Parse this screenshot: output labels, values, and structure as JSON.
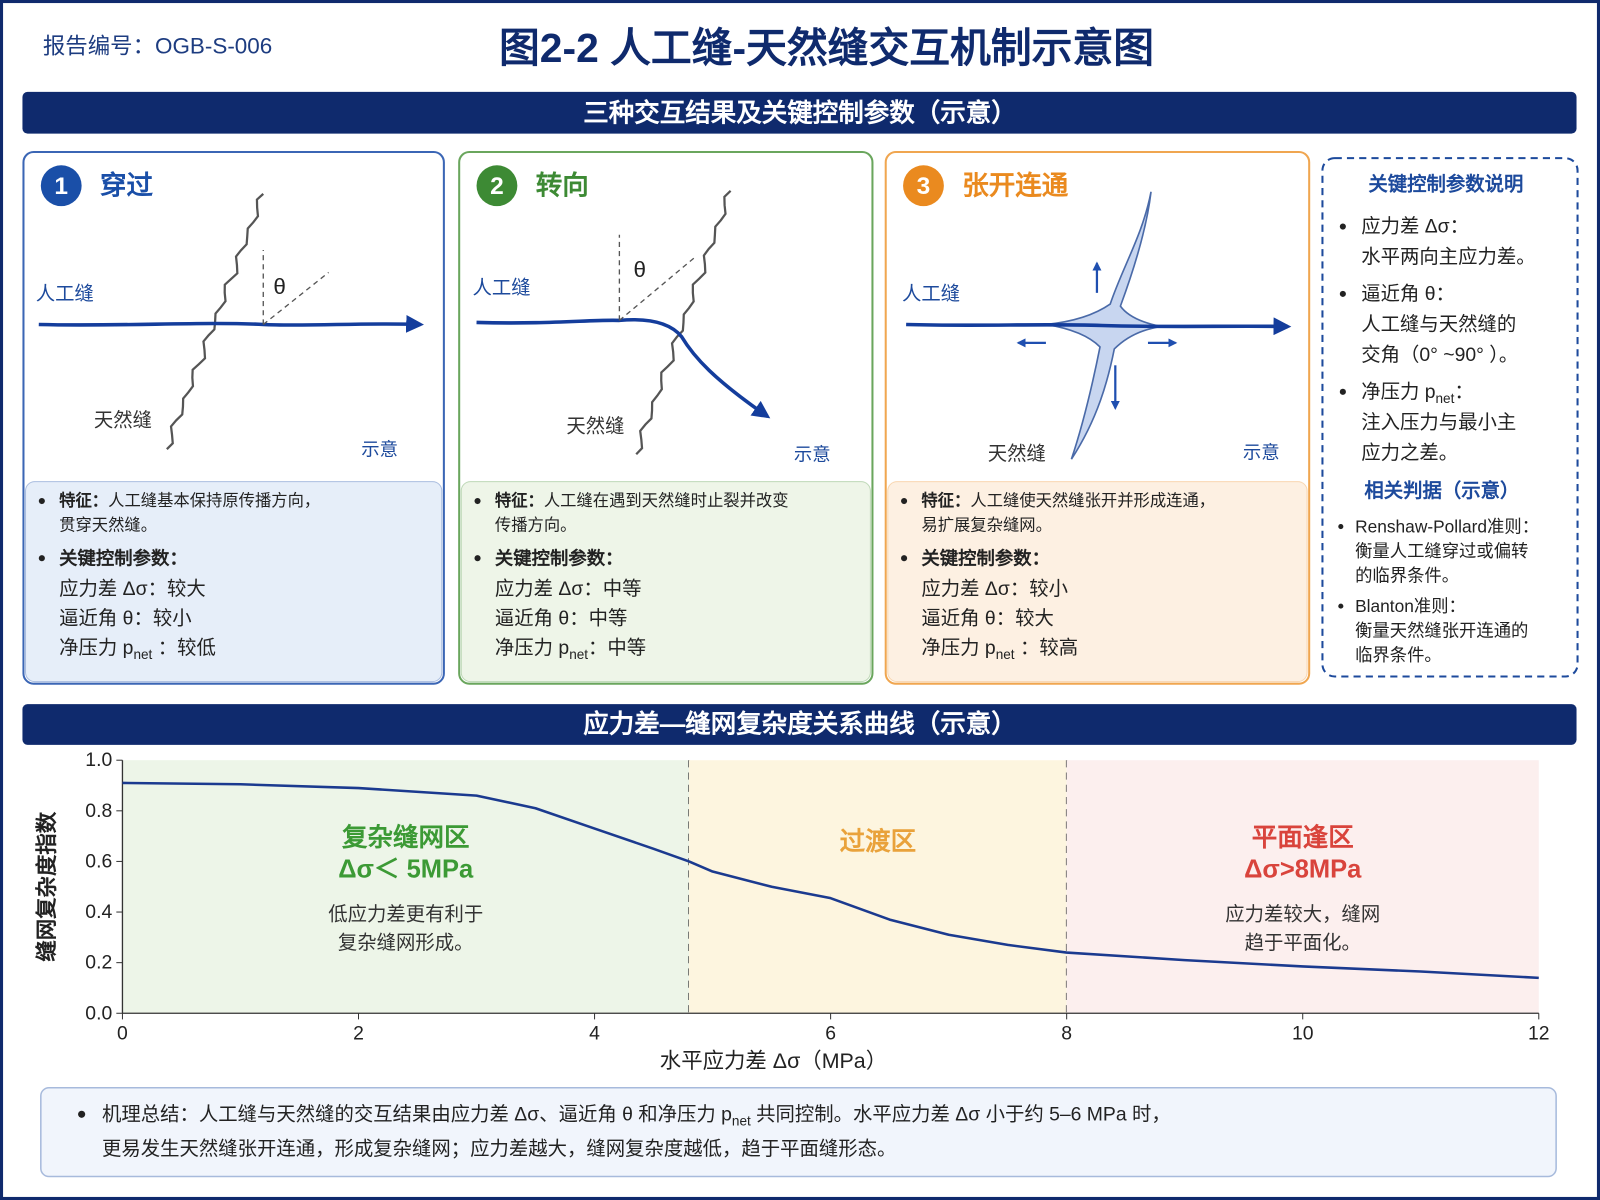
{
  "header": {
    "report_no": "报告编号：OGB-S-006",
    "title": "图2-2  人工缝-天然缝交互机制示意图"
  },
  "section_title": "三种交互结果及关键控制参数（示意）",
  "cards": [
    {
      "number": "1",
      "title": "穿过",
      "artificial_label": "人工缝",
      "natural_label": "天然缝",
      "angle_label": "θ",
      "note": "示意",
      "feature_label": "特征：",
      "feature_lines": [
        "人工缝基本保持原传播方向，",
        "贯穿天然缝。"
      ],
      "params_label": "关键控制参数：",
      "params": [
        {
          "name": "应力差 Δσ",
          "value": "：较大"
        },
        {
          "name": "逼近角 θ",
          "value": "：较小"
        },
        {
          "name": "净压力 p",
          "sub": "net",
          "value": " ：较低"
        }
      ]
    },
    {
      "number": "2",
      "title": "转向",
      "artificial_label": "人工缝",
      "natural_label": "天然缝",
      "angle_label": "θ",
      "note": "示意",
      "feature_label": "特征：",
      "feature_lines": [
        "人工缝在遇到天然缝时止裂并改变",
        "传播方向。"
      ],
      "params_label": "关键控制参数：",
      "params": [
        {
          "name": "应力差 Δσ",
          "value": "：中等"
        },
        {
          "name": "逼近角 θ",
          "value": "：中等"
        },
        {
          "name": "净压力 p",
          "sub": "net",
          "value": "：中等"
        }
      ]
    },
    {
      "number": "3",
      "title": "张开连通",
      "artificial_label": "人工缝",
      "natural_label": "天然缝",
      "note": "示意",
      "feature_label": "特征：",
      "feature_lines": [
        "人工缝使天然缝张开并形成连通，",
        "易扩展复杂缝网。"
      ],
      "params_label": "关键控制参数：",
      "params": [
        {
          "name": "应力差 Δσ",
          "value": "：较小"
        },
        {
          "name": "逼近角 θ",
          "value": "：较大"
        },
        {
          "name": "净压力 p",
          "sub": "net",
          "value": " ：较高"
        }
      ]
    }
  ],
  "side_panel": {
    "title": "关键控制参数说明",
    "items": [
      {
        "name": "应力差 Δσ：",
        "desc": [
          "水平两向主应力差。"
        ]
      },
      {
        "name": "逼近角 θ：",
        "desc": [
          "人工缝与天然缝的",
          "交角（0° ~90° ）。"
        ]
      },
      {
        "name": "净压力 p",
        "sub": "net",
        "name_end": "：",
        "desc": [
          "注入压力与最小主",
          "应力之差。"
        ]
      }
    ],
    "criteria_title": "相关判据（示意）",
    "criteria": [
      [
        "Renshaw-Pollard准则：",
        "衡量人工缝穿过或偏转",
        "的临界条件。"
      ],
      [
        "Blanton准则：",
        "衡量天然缝张开连通的",
        "临界条件。"
      ]
    ]
  },
  "chart_data": {
    "type": "line",
    "title": "应力差—缝网复杂度关系曲线（示意）",
    "x": [
      0,
      1,
      2,
      3,
      3.5,
      4,
      4.5,
      4.8,
      5,
      5.5,
      6,
      6.5,
      7,
      7.5,
      8,
      9,
      10,
      11,
      12
    ],
    "values": [
      0.91,
      0.905,
      0.89,
      0.86,
      0.81,
      0.73,
      0.65,
      0.6,
      0.56,
      0.5,
      0.455,
      0.37,
      0.31,
      0.27,
      0.24,
      0.21,
      0.185,
      0.165,
      0.14
    ],
    "color": "#1b3a8f",
    "xlim": [
      0,
      12
    ],
    "ylim": [
      0,
      1
    ],
    "xticks": [
      0,
      2,
      4,
      6,
      8,
      10,
      12
    ],
    "yticks": [
      {
        "value": 0,
        "label": "0.0"
      },
      {
        "value": 0.2,
        "label": "0.2"
      },
      {
        "value": 0.4,
        "label": "0.4"
      },
      {
        "value": 0.6,
        "label": "0.6"
      },
      {
        "value": 0.8,
        "label": "0.8"
      },
      {
        "value": 1,
        "label": "1.0"
      }
    ],
    "xlabel": "水平应力差 Δσ（MPa）",
    "ylabel": "缝网复杂度指数",
    "regions": [
      {
        "from": 0,
        "to": 4.8,
        "color": "#edf5e8",
        "title_color": "#3c9a35",
        "title": "复杂缝网区",
        "subtitle": "Δσ＜ 5MPa",
        "note": [
          "低应力差更有利于",
          "复杂缝网形成。"
        ]
      },
      {
        "from": 4.8,
        "to": 8,
        "color": "#fdf5df",
        "title_color": "#e9a23b",
        "title": "过渡区"
      },
      {
        "from": 8,
        "to": 12,
        "color": "#fcefee",
        "title_color": "#d9443c",
        "title": "平面逢区",
        "subtitle": "Δσ>8MPa",
        "note": [
          "应力差较大，缝网",
          "趋于平面化。"
        ]
      }
    ]
  },
  "summary": {
    "line1": "机理总结：人工缝与天然缝的交互结果由应力差 Δσ、逼近角 θ 和净压力 p",
    "line1_sub": "net",
    "line1_end": " 共同控制。水平应力差 Δσ 小于约 5–6 MPa 时，",
    "line2": "更易发生天然缝张开连通，形成复杂缝网；应力差越大，缝网复杂度越低，趋于平面缝形态。"
  }
}
